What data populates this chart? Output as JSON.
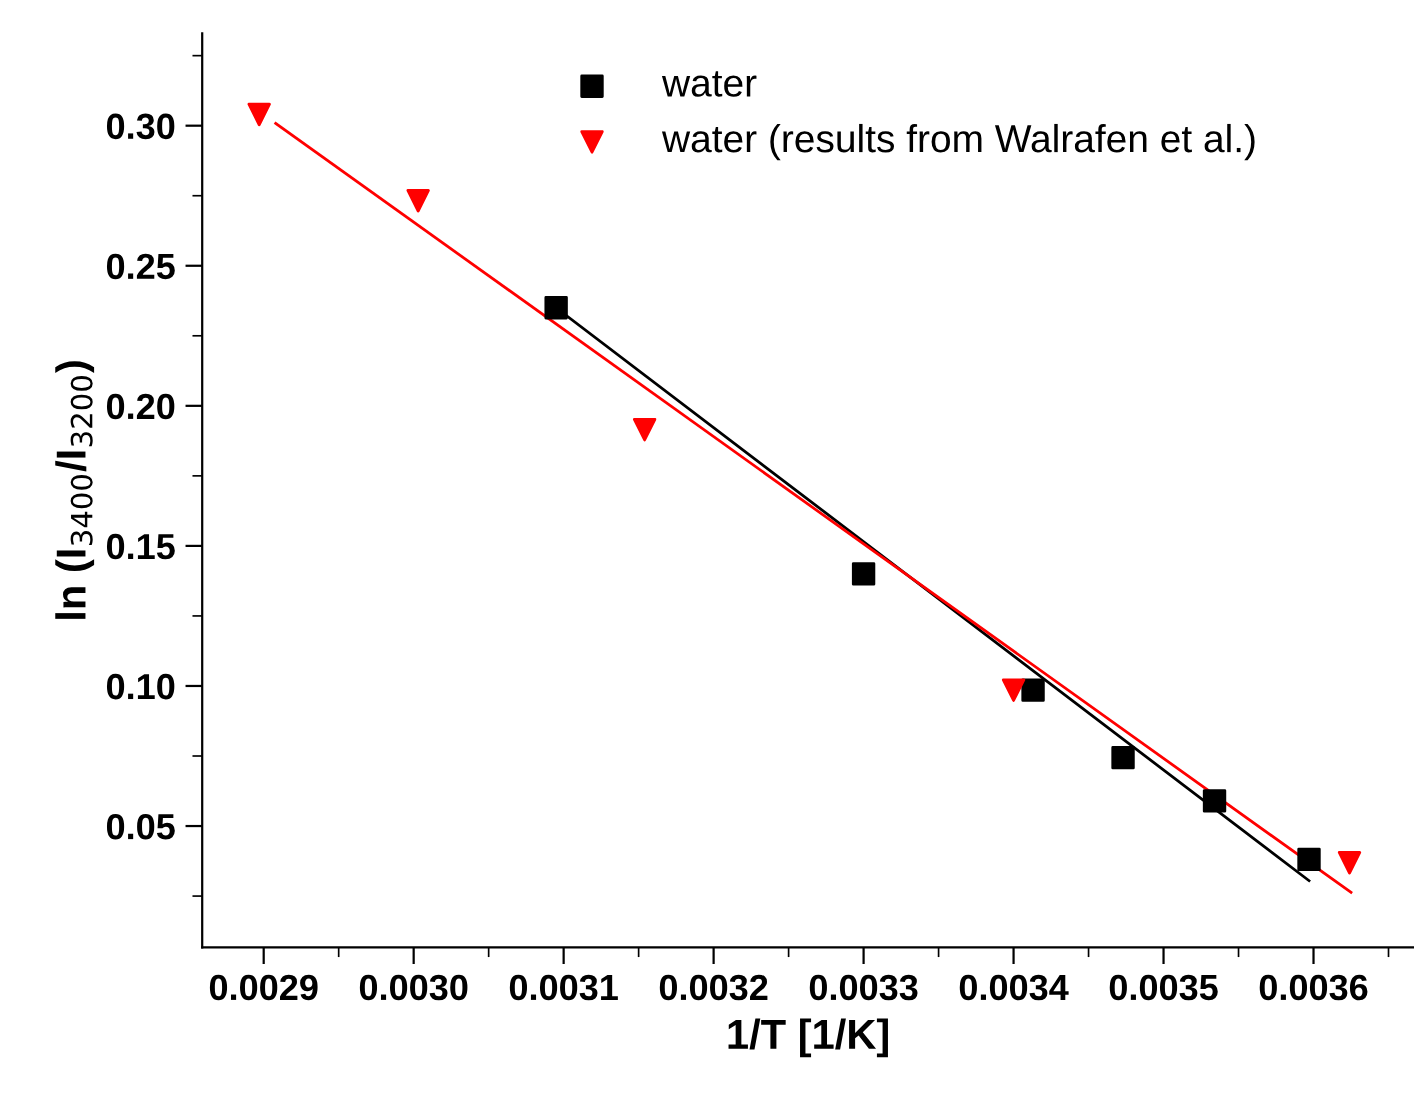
{
  "chart_data": {
    "type": "scatter",
    "xlabel": "1/T [1/K]",
    "ylabel": "ln (I$_{3400}$/I$_{3200}$)",
    "series": [
      {
        "name": "water",
        "color": "#000000",
        "marker": "square",
        "x": [
          0.003095,
          0.0033,
          0.003413,
          0.003473,
          0.003534,
          0.003597
        ],
        "values": [
          0.235,
          0.14,
          0.0985,
          0.0744,
          0.059,
          0.0381
        ]
      },
      {
        "name": "water (results from Walrafen et al.)",
        "color": "#ff0000",
        "marker": "triangle",
        "x": [
          0.002897,
          0.003003,
          0.003154,
          0.0034,
          0.003624
        ],
        "values": [
          0.304,
          0.2732,
          0.1915,
          0.0985,
          0.0369
        ]
      },
      {
        "type": "line",
        "color": "#000000",
        "x": [
          0.003095,
          0.003597
        ],
        "values": [
          0.235,
          0.0305
        ]
      },
      {
        "type": "line",
        "color": "#ff0000",
        "x": [
          0.002908,
          0.003625
        ],
        "values": [
          0.3008,
          0.0263
        ]
      }
    ],
    "xlim": [
      0.002859,
      0.003667
    ],
    "ylim": [
      0.0067,
      0.333
    ],
    "xticks": [
      0.0029,
      {
        "value": 0.003,
        "label": "0.0030"
      },
      0.0031,
      0.0032,
      0.0033,
      0.0034,
      0.0035,
      0.0036
    ],
    "yticks": [
      {
        "value": 0.05,
        "label": "0.05"
      },
      {
        "value": 0.1,
        "label": "0.10"
      },
      {
        "value": 0.15,
        "label": "0.15"
      },
      {
        "value": 0.2,
        "label": "0.20"
      },
      {
        "value": 0.25,
        "label": "0.25"
      },
      {
        "value": 0.3,
        "label": "0.30"
      }
    ],
    "legend": "top",
    "grid": false
  }
}
